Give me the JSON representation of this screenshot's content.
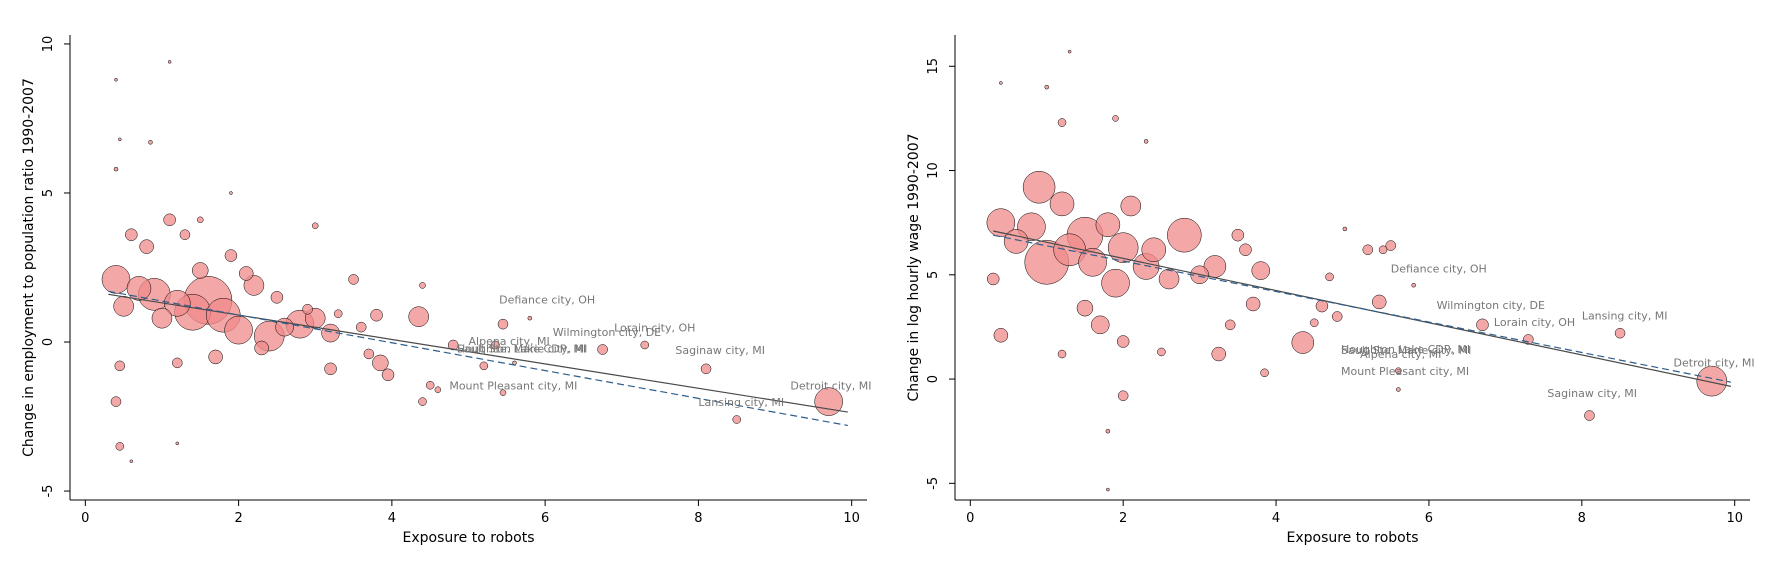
{
  "chart_data": [
    {
      "type": "scatter",
      "xlabel": "Exposure to robots",
      "ylabel": "Change in employment to population ratio 1990-2007",
      "xlim": [
        -0.2,
        10.2
      ],
      "ylim": [
        -5.3,
        10.3
      ],
      "xticks": [
        "0",
        "2",
        "4",
        "6",
        "8",
        "10"
      ],
      "yticks": [
        "-5",
        "0",
        "5",
        "10"
      ],
      "grid": false,
      "marker_color": "#f08a8a",
      "fit_lines": [
        {
          "style": "solid",
          "color": "#4a4a4a",
          "x": [
            0.3,
            9.95
          ],
          "y": [
            1.6,
            -2.35
          ]
        },
        {
          "style": "dashed",
          "color": "#2e5e8e",
          "x": [
            0.3,
            9.95
          ],
          "y": [
            1.7,
            -2.8
          ]
        }
      ],
      "points": [
        {
          "x": 0.4,
          "y": 2.1,
          "s": 14
        },
        {
          "x": 0.5,
          "y": 1.2,
          "s": 10
        },
        {
          "x": 0.7,
          "y": 1.8,
          "s": 12
        },
        {
          "x": 0.9,
          "y": 1.6,
          "s": 16
        },
        {
          "x": 1.0,
          "y": 0.8,
          "s": 10
        },
        {
          "x": 1.2,
          "y": 1.3,
          "s": 13
        },
        {
          "x": 1.4,
          "y": 1.0,
          "s": 18
        },
        {
          "x": 1.6,
          "y": 1.4,
          "s": 24
        },
        {
          "x": 1.8,
          "y": 0.9,
          "s": 17
        },
        {
          "x": 2.0,
          "y": 0.4,
          "s": 14
        },
        {
          "x": 2.2,
          "y": 1.9,
          "s": 10
        },
        {
          "x": 2.4,
          "y": 0.2,
          "s": 15
        },
        {
          "x": 2.6,
          "y": 0.5,
          "s": 9
        },
        {
          "x": 2.8,
          "y": 0.6,
          "s": 14
        },
        {
          "x": 3.0,
          "y": 0.8,
          "s": 10
        },
        {
          "x": 3.2,
          "y": 0.3,
          "s": 9
        },
        {
          "x": 0.8,
          "y": 3.2,
          "s": 7
        },
        {
          "x": 1.1,
          "y": 4.1,
          "s": 6
        },
        {
          "x": 1.3,
          "y": 3.6,
          "s": 5
        },
        {
          "x": 0.6,
          "y": 3.6,
          "s": 6
        },
        {
          "x": 1.5,
          "y": 2.4,
          "s": 8
        },
        {
          "x": 1.9,
          "y": 2.9,
          "s": 6
        },
        {
          "x": 2.1,
          "y": 2.3,
          "s": 7
        },
        {
          "x": 2.5,
          "y": 1.5,
          "s": 6
        },
        {
          "x": 1.7,
          "y": -0.5,
          "s": 7
        },
        {
          "x": 1.2,
          "y": -0.7,
          "s": 5
        },
        {
          "x": 2.3,
          "y": -0.2,
          "s": 7
        },
        {
          "x": 0.45,
          "y": -0.8,
          "s": 5
        },
        {
          "x": 0.4,
          "y": -2.0,
          "s": 5
        },
        {
          "x": 0.45,
          "y": -3.5,
          "s": 4
        },
        {
          "x": 3.5,
          "y": 2.1,
          "s": 5
        },
        {
          "x": 3.2,
          "y": -0.9,
          "s": 6
        },
        {
          "x": 3.6,
          "y": 0.5,
          "s": 5
        },
        {
          "x": 3.8,
          "y": 0.9,
          "s": 6
        },
        {
          "x": 3.85,
          "y": -0.7,
          "s": 8
        },
        {
          "x": 3.95,
          "y": -1.1,
          "s": 6
        },
        {
          "x": 3.7,
          "y": -0.4,
          "s": 5
        },
        {
          "x": 4.35,
          "y": 0.85,
          "s": 10
        },
        {
          "x": 4.4,
          "y": 1.9,
          "s": 3
        },
        {
          "x": 4.4,
          "y": -2.0,
          "s": 4
        },
        {
          "x": 4.5,
          "y": -1.45,
          "s": 4
        },
        {
          "x": 4.6,
          "y": -1.6,
          "s": 3
        },
        {
          "x": 4.8,
          "y": -0.1,
          "s": 5
        },
        {
          "x": 3.3,
          "y": 0.95,
          "s": 4
        },
        {
          "x": 2.9,
          "y": 1.1,
          "s": 5
        },
        {
          "x": 3.0,
          "y": 3.9,
          "s": 3
        },
        {
          "x": 0.4,
          "y": 5.8,
          "s": 2
        },
        {
          "x": 0.4,
          "y": 8.8,
          "s": 1.5
        },
        {
          "x": 1.1,
          "y": 9.4,
          "s": 1.5
        },
        {
          "x": 0.85,
          "y": 6.7,
          "s": 2
        },
        {
          "x": 0.45,
          "y": 6.8,
          "s": 1.5
        },
        {
          "x": 1.5,
          "y": 4.1,
          "s": 3
        },
        {
          "x": 1.9,
          "y": 5.0,
          "s": 1.5
        },
        {
          "x": 0.6,
          "y": -4.0,
          "s": 1.5
        },
        {
          "x": 1.2,
          "y": -3.4,
          "s": 1.5
        },
        {
          "x": 5.45,
          "y": 0.6,
          "s": 5
        },
        {
          "x": 5.6,
          "y": -0.7,
          "s": 2
        },
        {
          "x": 5.45,
          "y": -1.7,
          "s": 3
        },
        {
          "x": 5.8,
          "y": 0.8,
          "s": 2
        },
        {
          "x": 5.2,
          "y": -0.8,
          "s": 4
        },
        {
          "x": 5.35,
          "y": -0.1,
          "s": 4
        },
        {
          "x": 6.75,
          "y": -0.25,
          "s": 5
        },
        {
          "x": 7.3,
          "y": -0.1,
          "s": 4
        },
        {
          "x": 8.1,
          "y": -0.9,
          "s": 5
        },
        {
          "x": 8.5,
          "y": -2.6,
          "s": 4
        },
        {
          "x": 9.7,
          "y": -2.0,
          "s": 14
        }
      ],
      "annotations": [
        {
          "text": "Defiance city, OH",
          "x": 5.4,
          "y": 1.3
        },
        {
          "text": "Wilmington city, DE",
          "x": 6.1,
          "y": 0.2
        },
        {
          "text": "Lorain city, OH",
          "x": 6.9,
          "y": 0.35
        },
        {
          "text": "Alpena city, MI",
          "x": 5.0,
          "y": -0.1
        },
        {
          "text": "Houghton Lake CDP, MI",
          "x": 4.85,
          "y": -0.35
        },
        {
          "text": "Sault Ste. Marie city, MI",
          "x": 4.85,
          "y": -0.35
        },
        {
          "text": "Saginaw city, MI",
          "x": 7.7,
          "y": -0.4
        },
        {
          "text": "Mount Pleasant city, MI",
          "x": 4.75,
          "y": -1.6
        },
        {
          "text": "Detroit city, MI",
          "x": 9.2,
          "y": -1.6
        },
        {
          "text": "Lansing city, MI",
          "x": 8.0,
          "y": -2.15
        }
      ]
    },
    {
      "type": "scatter",
      "xlabel": "Exposure to robots",
      "ylabel": "Change in log hourly wage 1990-2007",
      "xlim": [
        -0.2,
        10.2
      ],
      "ylim": [
        -5.8,
        16.5
      ],
      "xticks": [
        "0",
        "2",
        "4",
        "6",
        "8",
        "10"
      ],
      "yticks": [
        "-5",
        "0",
        "5",
        "10",
        "15"
      ],
      "grid": false,
      "marker_color": "#f08a8a",
      "fit_lines": [
        {
          "style": "solid",
          "color": "#4a4a4a",
          "x": [
            0.3,
            9.95
          ],
          "y": [
            7.1,
            -0.35
          ]
        },
        {
          "style": "dashed",
          "color": "#2e5e8e",
          "x": [
            0.3,
            9.95
          ],
          "y": [
            6.9,
            -0.15
          ]
        }
      ],
      "points": [
        {
          "x": 0.4,
          "y": 7.5,
          "s": 14
        },
        {
          "x": 0.6,
          "y": 6.6,
          "s": 12
        },
        {
          "x": 0.8,
          "y": 7.3,
          "s": 14
        },
        {
          "x": 0.9,
          "y": 9.2,
          "s": 16
        },
        {
          "x": 1.0,
          "y": 5.6,
          "s": 22
        },
        {
          "x": 1.2,
          "y": 8.4,
          "s": 12
        },
        {
          "x": 1.3,
          "y": 6.2,
          "s": 16
        },
        {
          "x": 1.5,
          "y": 6.9,
          "s": 18
        },
        {
          "x": 1.6,
          "y": 5.6,
          "s": 14
        },
        {
          "x": 1.8,
          "y": 7.4,
          "s": 12
        },
        {
          "x": 1.9,
          "y": 4.6,
          "s": 14
        },
        {
          "x": 2.0,
          "y": 6.3,
          "s": 15
        },
        {
          "x": 2.1,
          "y": 8.3,
          "s": 10
        },
        {
          "x": 2.3,
          "y": 5.4,
          "s": 13
        },
        {
          "x": 2.4,
          "y": 6.2,
          "s": 12
        },
        {
          "x": 2.6,
          "y": 4.8,
          "s": 10
        },
        {
          "x": 2.8,
          "y": 6.9,
          "s": 17
        },
        {
          "x": 3.0,
          "y": 5.0,
          "s": 9
        },
        {
          "x": 3.2,
          "y": 5.4,
          "s": 11
        },
        {
          "x": 3.5,
          "y": 6.9,
          "s": 6
        },
        {
          "x": 3.6,
          "y": 6.2,
          "s": 6
        },
        {
          "x": 3.7,
          "y": 3.6,
          "s": 7
        },
        {
          "x": 3.8,
          "y": 5.2,
          "s": 9
        },
        {
          "x": 3.4,
          "y": 2.6,
          "s": 5
        },
        {
          "x": 1.7,
          "y": 2.6,
          "s": 9
        },
        {
          "x": 1.5,
          "y": 3.4,
          "s": 8
        },
        {
          "x": 2.0,
          "y": 1.8,
          "s": 6
        },
        {
          "x": 0.4,
          "y": 2.1,
          "s": 7
        },
        {
          "x": 0.3,
          "y": 4.8,
          "s": 6
        },
        {
          "x": 1.2,
          "y": 1.2,
          "s": 4
        },
        {
          "x": 2.5,
          "y": 1.3,
          "s": 4
        },
        {
          "x": 2.0,
          "y": -0.8,
          "s": 5
        },
        {
          "x": 1.8,
          "y": -2.5,
          "s": 2
        },
        {
          "x": 1.8,
          "y": -5.3,
          "s": 1.5
        },
        {
          "x": 1.3,
          "y": 15.7,
          "s": 1.5
        },
        {
          "x": 1.2,
          "y": 12.3,
          "s": 4
        },
        {
          "x": 1.9,
          "y": 12.5,
          "s": 3
        },
        {
          "x": 0.4,
          "y": 14.2,
          "s": 1.5
        },
        {
          "x": 1.0,
          "y": 14.0,
          "s": 2
        },
        {
          "x": 2.3,
          "y": 11.4,
          "s": 2
        },
        {
          "x": 3.25,
          "y": 1.2,
          "s": 7
        },
        {
          "x": 3.85,
          "y": 0.3,
          "s": 4
        },
        {
          "x": 4.35,
          "y": 1.75,
          "s": 11
        },
        {
          "x": 4.5,
          "y": 2.7,
          "s": 4
        },
        {
          "x": 4.6,
          "y": 3.5,
          "s": 6
        },
        {
          "x": 4.7,
          "y": 4.9,
          "s": 4
        },
        {
          "x": 4.8,
          "y": 3.0,
          "s": 5
        },
        {
          "x": 4.9,
          "y": 7.2,
          "s": 2
        },
        {
          "x": 5.2,
          "y": 6.2,
          "s": 5
        },
        {
          "x": 5.4,
          "y": 6.2,
          "s": 4
        },
        {
          "x": 5.5,
          "y": 6.4,
          "s": 5
        },
        {
          "x": 5.35,
          "y": 3.7,
          "s": 7
        },
        {
          "x": 5.6,
          "y": 0.4,
          "s": 3
        },
        {
          "x": 5.6,
          "y": -0.5,
          "s": 2
        },
        {
          "x": 5.8,
          "y": 4.5,
          "s": 2
        },
        {
          "x": 6.7,
          "y": 2.6,
          "s": 6
        },
        {
          "x": 7.3,
          "y": 1.9,
          "s": 5
        },
        {
          "x": 8.1,
          "y": -1.75,
          "s": 5
        },
        {
          "x": 8.5,
          "y": 2.2,
          "s": 5
        },
        {
          "x": 9.7,
          "y": -0.1,
          "s": 15
        }
      ],
      "annotations": [
        {
          "text": "Defiance city, OH",
          "x": 5.5,
          "y": 5.1
        },
        {
          "text": "Wilmington city, DE",
          "x": 6.1,
          "y": 3.35
        },
        {
          "text": "Lorain city, OH",
          "x": 6.85,
          "y": 2.55
        },
        {
          "text": "Lansing city, MI",
          "x": 8.0,
          "y": 2.85
        },
        {
          "text": "Houghton Lake CDP, MI",
          "x": 4.85,
          "y": 1.25
        },
        {
          "text": "Sault Ste. Marie city, MI",
          "x": 4.85,
          "y": 1.2
        },
        {
          "text": "Alpena city, MI",
          "x": 5.1,
          "y": 1.0
        },
        {
          "text": "Mount Pleasant city, MI",
          "x": 4.85,
          "y": 0.2
        },
        {
          "text": "Detroit city, MI",
          "x": 9.2,
          "y": 0.6
        },
        {
          "text": "Saginaw city, MI",
          "x": 7.55,
          "y": -0.85
        }
      ]
    }
  ]
}
